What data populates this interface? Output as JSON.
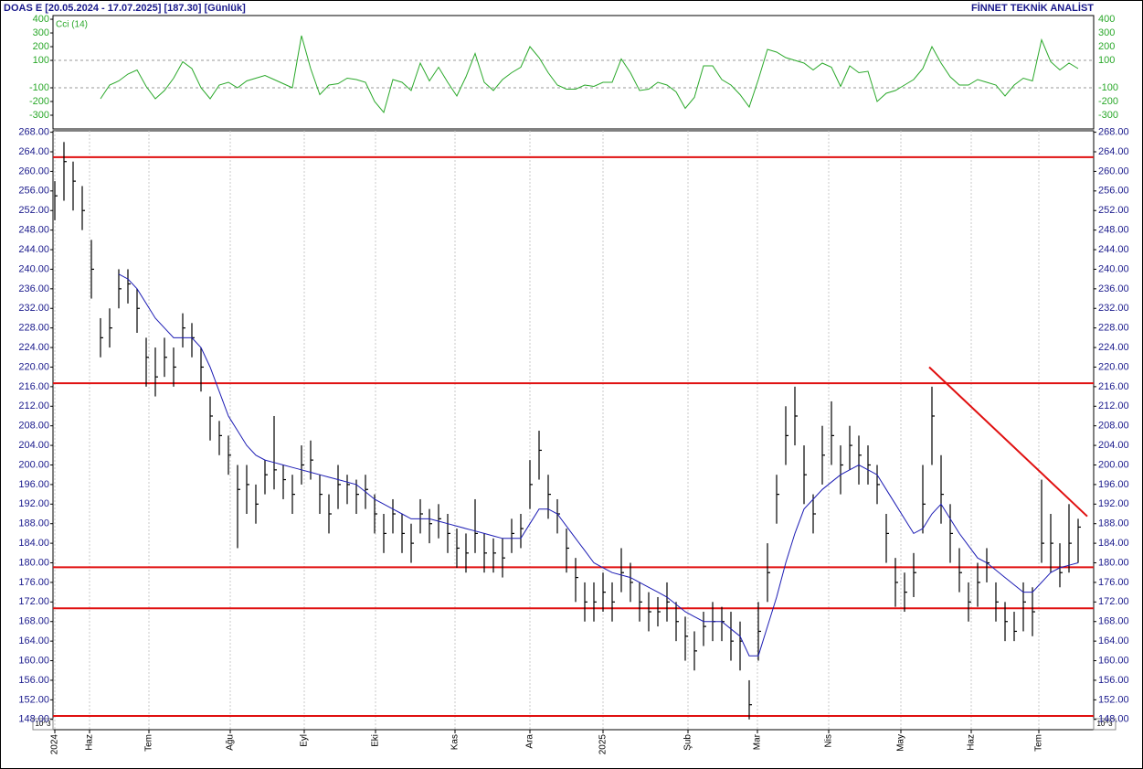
{
  "chart_data": {
    "type": "ohlc",
    "header": "DOAS  E  [20.05.2024 - 17.07.2025]  [187.30]  [Günlük]",
    "brand": "FİNNET TEKNİK ANALİST",
    "scale_note": "10^3",
    "xlim": [
      -0.2,
      113.7
    ],
    "month_ticks": [
      {
        "value": 0,
        "label": "2024"
      },
      {
        "value": 3.8,
        "label": "Haz"
      },
      {
        "value": 10.3,
        "label": "Tem"
      },
      {
        "value": 19.2,
        "label": "Ağu"
      },
      {
        "value": 27.3,
        "label": "Eyl"
      },
      {
        "value": 35.1,
        "label": "Eki"
      },
      {
        "value": 43.8,
        "label": "Kas"
      },
      {
        "value": 52,
        "label": "Ara"
      },
      {
        "value": 60,
        "label": "2025"
      },
      {
        "value": 69.3,
        "label": "Şub"
      },
      {
        "value": 76.9,
        "label": "Mar"
      },
      {
        "value": 84.7,
        "label": "Nis"
      },
      {
        "value": 92.6,
        "label": "May"
      },
      {
        "value": 100.3,
        "label": "Haz"
      },
      {
        "value": 107.7,
        "label": "Tem"
      }
    ],
    "ylim": [
      145.9,
      268.3
    ],
    "yticks": [
      {
        "value": 148,
        "label": "148.00"
      },
      {
        "value": 152,
        "label": "152.00"
      },
      {
        "value": 156,
        "label": "156.00"
      },
      {
        "value": 160,
        "label": "160.00"
      },
      {
        "value": 164,
        "label": "164.00"
      },
      {
        "value": 168,
        "label": "168.00"
      },
      {
        "value": 172,
        "label": "172.00"
      },
      {
        "value": 176,
        "label": "176.00"
      },
      {
        "value": 180,
        "label": "180.00"
      },
      {
        "value": 184,
        "label": "184.00"
      },
      {
        "value": 188,
        "label": "188.00"
      },
      {
        "value": 192,
        "label": "192.00"
      },
      {
        "value": 196,
        "label": "196.00"
      },
      {
        "value": 200,
        "label": "200.00"
      },
      {
        "value": 204,
        "label": "204.00"
      },
      {
        "value": 208,
        "label": "208.00"
      },
      {
        "value": 212,
        "label": "212.00"
      },
      {
        "value": 216,
        "label": "216.00"
      },
      {
        "value": 220,
        "label": "220.00"
      },
      {
        "value": 224,
        "label": "224.00"
      },
      {
        "value": 228,
        "label": "228.00"
      },
      {
        "value": 232,
        "label": "232.00"
      },
      {
        "value": 236,
        "label": "236.00"
      },
      {
        "value": 240,
        "label": "240.00"
      },
      {
        "value": 244,
        "label": "244.00"
      },
      {
        "value": 248,
        "label": "248.00"
      },
      {
        "value": 252,
        "label": "252.00"
      },
      {
        "value": 256,
        "label": "256.00"
      },
      {
        "value": 260,
        "label": "260.00"
      },
      {
        "value": 264,
        "label": "264.00"
      },
      {
        "value": 268,
        "label": "268.00"
      }
    ],
    "bar_color": "#000000",
    "high": [
      258,
      266,
      262,
      257,
      246,
      230,
      232,
      240,
      240,
      236,
      226,
      224,
      226,
      224,
      231,
      229,
      224,
      214,
      209,
      206,
      200,
      200,
      196,
      201,
      210,
      200,
      198,
      204,
      205,
      198,
      194,
      200,
      198,
      197,
      198,
      194,
      190,
      193,
      190,
      188,
      193,
      191,
      192,
      190,
      187,
      186,
      193,
      186,
      185,
      185,
      189,
      190,
      201,
      207,
      198,
      193,
      187,
      181,
      176,
      176,
      178,
      176,
      183,
      180,
      176,
      174,
      173,
      176,
      172,
      169,
      166,
      170,
      172,
      171,
      170,
      168,
      156,
      172,
      184,
      198,
      212,
      216,
      204,
      194,
      208,
      213,
      204,
      208,
      206,
      204,
      200,
      190,
      181,
      178,
      182,
      200,
      216,
      202,
      192,
      183,
      176,
      180,
      183,
      176,
      172,
      170,
      176,
      175,
      197,
      190,
      184,
      192,
      189
    ],
    "low": [
      250,
      254,
      252,
      248,
      234,
      222,
      224,
      232,
      233,
      227,
      216,
      214,
      218,
      216,
      224,
      222,
      215,
      205,
      202,
      198,
      183,
      190,
      188,
      194,
      195,
      193,
      190,
      196,
      197,
      190,
      186,
      191,
      192,
      190,
      191,
      186,
      182,
      186,
      182,
      180,
      186,
      184,
      185,
      182,
      179,
      178,
      182,
      178,
      178,
      177,
      182,
      183,
      191,
      197,
      189,
      186,
      178,
      172,
      168,
      168,
      170,
      168,
      174,
      172,
      168,
      166,
      167,
      168,
      164,
      160,
      158,
      163,
      164,
      164,
      160,
      158,
      148,
      160,
      172,
      188,
      200,
      204,
      192,
      186,
      196,
      200,
      194,
      199,
      196,
      196,
      192,
      180,
      171,
      170,
      173,
      186,
      200,
      188,
      180,
      174,
      168,
      171,
      176,
      168,
      164,
      164,
      166,
      165,
      180,
      178,
      175,
      178,
      180
    ],
    "close": [
      255,
      262,
      258,
      252,
      240,
      226,
      228,
      236,
      237,
      232,
      222,
      218,
      222,
      220,
      228,
      226,
      220,
      210,
      206,
      202,
      195,
      196,
      192,
      198,
      199,
      197,
      194,
      200,
      201,
      194,
      190,
      196,
      196,
      194,
      195,
      190,
      186,
      190,
      186,
      184,
      190,
      188,
      189,
      186,
      183,
      182,
      186,
      182,
      182,
      181,
      186,
      187,
      196,
      203,
      194,
      190,
      183,
      177,
      172,
      172,
      174,
      172,
      178,
      176,
      172,
      170,
      170,
      172,
      168,
      165,
      162,
      167,
      168,
      168,
      164,
      164,
      151,
      166,
      178,
      194,
      206,
      210,
      198,
      190,
      202,
      206,
      200,
      204,
      202,
      200,
      196,
      186,
      176,
      174,
      178,
      192,
      210,
      194,
      186,
      178,
      172,
      176,
      180,
      172,
      168,
      166,
      172,
      170,
      184,
      184,
      178,
      184,
      187.3
    ],
    "ma_color": "#1c1cb4",
    "ma": [
      null,
      null,
      null,
      null,
      null,
      null,
      null,
      239,
      238,
      236,
      233,
      230,
      228,
      226,
      226,
      226,
      224,
      220,
      215,
      210,
      207,
      204,
      202,
      201,
      200.5,
      200,
      199.5,
      199,
      198.5,
      198,
      197.5,
      197,
      196.5,
      196,
      194.5,
      193,
      192,
      191,
      190,
      189,
      189,
      189,
      188.5,
      188,
      187.5,
      187,
      186.5,
      186,
      185.5,
      185,
      185,
      185,
      188,
      191,
      191,
      190,
      187.5,
      185,
      182.5,
      180,
      179,
      178,
      177.5,
      177,
      176,
      175,
      174,
      173,
      171.5,
      170,
      169,
      168,
      168,
      168,
      166.5,
      165,
      161,
      161,
      167,
      173,
      180,
      186,
      191,
      193,
      195,
      196.5,
      198,
      199,
      200,
      199,
      198,
      195,
      192,
      189,
      186,
      187,
      190,
      192,
      189,
      186,
      183.5,
      181,
      180,
      178.5,
      177,
      175.5,
      174,
      174,
      176,
      178,
      179,
      179.5,
      180
    ],
    "level_color": "#e01010",
    "levels": [
      262.9,
      216.7,
      179.1,
      170.7,
      148.7
    ],
    "trendline": {
      "start": [
        95.7,
        220
      ],
      "end": [
        113,
        189.5
      ]
    },
    "indicator": {
      "name": "Cci (14)",
      "color": "#2aa82a",
      "ylim": [
        -400,
        427
      ],
      "yticks": [
        400,
        300,
        200,
        100,
        -100,
        -200,
        -300
      ],
      "reference_lines": [
        100,
        -100
      ],
      "values": [
        null,
        null,
        null,
        null,
        null,
        -180,
        -80,
        -50,
        0,
        30,
        -90,
        -180,
        -120,
        -30,
        90,
        40,
        -100,
        -180,
        -80,
        -60,
        -100,
        -50,
        -30,
        -10,
        -40,
        -70,
        -100,
        280,
        40,
        -150,
        -80,
        -70,
        -30,
        -40,
        -60,
        -200,
        -280,
        -40,
        -60,
        -120,
        80,
        -50,
        50,
        -60,
        -160,
        -20,
        150,
        -60,
        -120,
        -40,
        10,
        50,
        200,
        120,
        10,
        -80,
        -110,
        -110,
        -80,
        -90,
        -60,
        -60,
        110,
        10,
        -120,
        -110,
        -60,
        -80,
        -130,
        -250,
        -170,
        60,
        60,
        -40,
        -80,
        -150,
        -240,
        -40,
        180,
        160,
        120,
        100,
        80,
        30,
        80,
        50,
        -90,
        60,
        10,
        20,
        -200,
        -140,
        -120,
        -80,
        -40,
        40,
        200,
        80,
        -20,
        -80,
        -80,
        -40,
        -60,
        -80,
        -160,
        -80,
        -30,
        -50,
        250,
        90,
        30,
        80,
        40
      ]
    }
  }
}
